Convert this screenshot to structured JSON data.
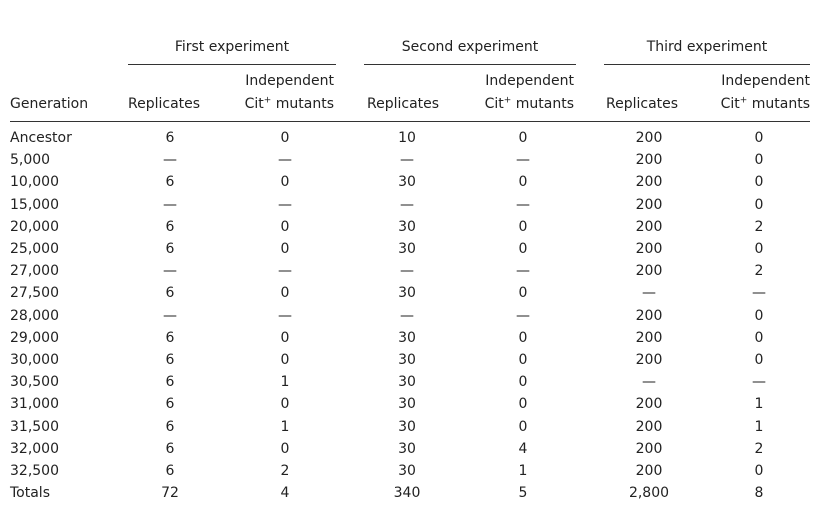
{
  "headers": {
    "generation": "Generation",
    "groups": [
      "First experiment",
      "Second experiment",
      "Third experiment"
    ],
    "replicates": "Replicates",
    "mutants_line1": "Independent",
    "mutants_prefix": "Cit",
    "mutants_sup": "+",
    "mutants_suffix": " mutants"
  },
  "rows": [
    {
      "generation": "Ancestor",
      "values": [
        "6",
        "0",
        "10",
        "0",
        "200",
        "0"
      ]
    },
    {
      "generation": "5,000",
      "values": [
        "—",
        "—",
        "—",
        "—",
        "200",
        "0"
      ]
    },
    {
      "generation": "10,000",
      "values": [
        "6",
        "0",
        "30",
        "0",
        "200",
        "0"
      ]
    },
    {
      "generation": "15,000",
      "values": [
        "—",
        "—",
        "—",
        "—",
        "200",
        "0"
      ]
    },
    {
      "generation": "20,000",
      "values": [
        "6",
        "0",
        "30",
        "0",
        "200",
        "2"
      ]
    },
    {
      "generation": "25,000",
      "values": [
        "6",
        "0",
        "30",
        "0",
        "200",
        "0"
      ]
    },
    {
      "generation": "27,000",
      "values": [
        "—",
        "—",
        "—",
        "—",
        "200",
        "2"
      ]
    },
    {
      "generation": "27,500",
      "values": [
        "6",
        "0",
        "30",
        "0",
        "—",
        "—"
      ]
    },
    {
      "generation": "28,000",
      "values": [
        "—",
        "—",
        "—",
        "—",
        "200",
        "0"
      ]
    },
    {
      "generation": "29,000",
      "values": [
        "6",
        "0",
        "30",
        "0",
        "200",
        "0"
      ]
    },
    {
      "generation": "30,000",
      "values": [
        "6",
        "0",
        "30",
        "0",
        "200",
        "0"
      ]
    },
    {
      "generation": "30,500",
      "values": [
        "6",
        "1",
        "30",
        "0",
        "—",
        "—"
      ]
    },
    {
      "generation": "31,000",
      "values": [
        "6",
        "0",
        "30",
        "0",
        "200",
        "1"
      ]
    },
    {
      "generation": "31,500",
      "values": [
        "6",
        "1",
        "30",
        "0",
        "200",
        "1"
      ]
    },
    {
      "generation": "32,000",
      "values": [
        "6",
        "0",
        "30",
        "4",
        "200",
        "2"
      ]
    },
    {
      "generation": "32,500",
      "values": [
        "6",
        "2",
        "30",
        "1",
        "200",
        "0"
      ]
    },
    {
      "generation": "Totals",
      "values": [
        "72",
        "4",
        "340",
        "5",
        "2,800",
        "8"
      ]
    }
  ]
}
